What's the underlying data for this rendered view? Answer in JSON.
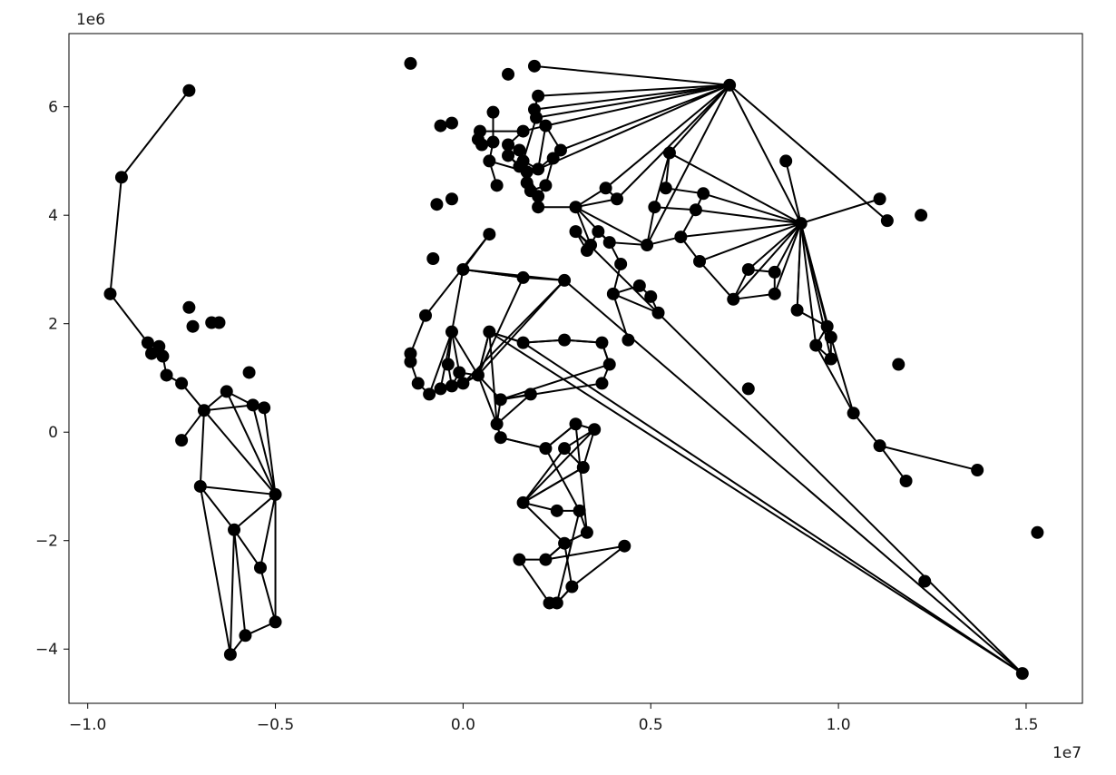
{
  "chart_data": {
    "type": "scatter",
    "title": "",
    "xlabel": "",
    "ylabel": "",
    "xlim": [
      -10500000,
      16500000
    ],
    "ylim": [
      -5000000,
      7350000
    ],
    "x_ticks": [
      {
        "value": -10000000,
        "label": "−1.0"
      },
      {
        "value": -5000000,
        "label": "−0.5"
      },
      {
        "value": 0,
        "label": "0.0"
      },
      {
        "value": 5000000,
        "label": "0.5"
      },
      {
        "value": 10000000,
        "label": "1.0"
      },
      {
        "value": 15000000,
        "label": "1.5"
      }
    ],
    "y_ticks": [
      {
        "value": -4000000,
        "label": "−4"
      },
      {
        "value": -2000000,
        "label": "−2"
      },
      {
        "value": 0,
        "label": "0"
      },
      {
        "value": 2000000,
        "label": "2"
      },
      {
        "value": 4000000,
        "label": "4"
      },
      {
        "value": 6000000,
        "label": "6"
      }
    ],
    "x_offset_label": "1e7",
    "y_offset_label": "1e6",
    "grid": false,
    "colors": {
      "points": "#000000",
      "edges": "#000000",
      "axes": "#000000"
    },
    "points": [
      [
        -7300000,
        6300000
      ],
      [
        -9100000,
        4700000
      ],
      [
        -9400000,
        2550000
      ],
      [
        -8400000,
        1650000
      ],
      [
        -8300000,
        1450000
      ],
      [
        -8100000,
        1580000
      ],
      [
        -8000000,
        1400000
      ],
      [
        -7900000,
        1050000
      ],
      [
        -7500000,
        900000
      ],
      [
        -6900000,
        400000
      ],
      [
        -7500000,
        -150000
      ],
      [
        -7000000,
        -1000000
      ],
      [
        -6300000,
        750000
      ],
      [
        -5600000,
        500000
      ],
      [
        -5300000,
        450000
      ],
      [
        -5700000,
        1100000
      ],
      [
        -5000000,
        -1150000
      ],
      [
        -6100000,
        -1800000
      ],
      [
        -5400000,
        -2500000
      ],
      [
        -5000000,
        -3500000
      ],
      [
        -5800000,
        -3750000
      ],
      [
        -6200000,
        -4100000
      ],
      [
        -7300000,
        2300000
      ],
      [
        -7200000,
        1950000
      ],
      [
        -6700000,
        2020000
      ],
      [
        -6500000,
        2020000
      ],
      [
        -1400000,
        6800000
      ],
      [
        -600000,
        5650000
      ],
      [
        -300000,
        5700000
      ],
      [
        -700000,
        4200000
      ],
      [
        -300000,
        4300000
      ],
      [
        -800000,
        3200000
      ],
      [
        1200000,
        6600000
      ],
      [
        1900000,
        6750000
      ],
      [
        7100000,
        6400000
      ],
      [
        2000000,
        6200000
      ],
      [
        1900000,
        5950000
      ],
      [
        1950000,
        5800000
      ],
      [
        2200000,
        5650000
      ],
      [
        2600000,
        5200000
      ],
      [
        2400000,
        5050000
      ],
      [
        2200000,
        4550000
      ],
      [
        2000000,
        4350000
      ],
      [
        2000000,
        4150000
      ],
      [
        1700000,
        4600000
      ],
      [
        1500000,
        4900000
      ],
      [
        1200000,
        5100000
      ],
      [
        1200000,
        5300000
      ],
      [
        1500000,
        5200000
      ],
      [
        1700000,
        4800000
      ],
      [
        1800000,
        4450000
      ],
      [
        900000,
        4550000
      ],
      [
        700000,
        5000000
      ],
      [
        800000,
        5350000
      ],
      [
        800000,
        5900000
      ],
      [
        500000,
        5300000
      ],
      [
        400000,
        5400000
      ],
      [
        450000,
        5550000
      ],
      [
        1600000,
        5550000
      ],
      [
        1600000,
        5000000
      ],
      [
        2000000,
        4850000
      ],
      [
        3000000,
        4150000
      ],
      [
        3800000,
        4500000
      ],
      [
        4100000,
        4300000
      ],
      [
        3900000,
        3500000
      ],
      [
        3600000,
        3700000
      ],
      [
        3300000,
        3350000
      ],
      [
        3000000,
        3700000
      ],
      [
        3400000,
        3450000
      ],
      [
        4200000,
        3100000
      ],
      [
        4000000,
        2550000
      ],
      [
        4700000,
        2700000
      ],
      [
        5000000,
        2500000
      ],
      [
        5200000,
        2200000
      ],
      [
        4400000,
        1700000
      ],
      [
        4900000,
        3450000
      ],
      [
        5100000,
        4150000
      ],
      [
        5500000,
        5150000
      ],
      [
        5400000,
        4500000
      ],
      [
        6400000,
        4400000
      ],
      [
        6200000,
        4100000
      ],
      [
        5800000,
        3600000
      ],
      [
        6300000,
        3150000
      ],
      [
        7200000,
        2450000
      ],
      [
        7600000,
        3000000
      ],
      [
        8300000,
        2950000
      ],
      [
        8300000,
        2550000
      ],
      [
        8600000,
        5000000
      ],
      [
        9000000,
        3850000
      ],
      [
        8900000,
        2250000
      ],
      [
        9700000,
        1950000
      ],
      [
        9800000,
        1750000
      ],
      [
        9800000,
        1350000
      ],
      [
        9400000,
        1600000
      ],
      [
        11100000,
        4300000
      ],
      [
        11300000,
        3900000
      ],
      [
        12200000,
        4000000
      ],
      [
        11600000,
        1250000
      ],
      [
        10400000,
        350000
      ],
      [
        11100000,
        -250000
      ],
      [
        11800000,
        -900000
      ],
      [
        13700000,
        -700000
      ],
      [
        7600000,
        800000
      ],
      [
        15300000,
        -1850000
      ],
      [
        12300000,
        -2750000
      ],
      [
        14900000,
        -4450000
      ],
      [
        2700000,
        2800000
      ],
      [
        1600000,
        2850000
      ],
      [
        0,
        3000000
      ],
      [
        700000,
        3650000
      ],
      [
        -1000000,
        2150000
      ],
      [
        -1400000,
        1450000
      ],
      [
        -1400000,
        1300000
      ],
      [
        -1200000,
        900000
      ],
      [
        -900000,
        700000
      ],
      [
        -600000,
        800000
      ],
      [
        -300000,
        850000
      ],
      [
        -400000,
        1250000
      ],
      [
        -300000,
        1850000
      ],
      [
        -100000,
        1100000
      ],
      [
        0,
        900000
      ],
      [
        400000,
        1050000
      ],
      [
        700000,
        1850000
      ],
      [
        1600000,
        1650000
      ],
      [
        2700000,
        1700000
      ],
      [
        3700000,
        1650000
      ],
      [
        3900000,
        1250000
      ],
      [
        3700000,
        900000
      ],
      [
        1000000,
        600000
      ],
      [
        1800000,
        700000
      ],
      [
        900000,
        150000
      ],
      [
        1000000,
        -100000
      ],
      [
        2200000,
        -300000
      ],
      [
        3000000,
        150000
      ],
      [
        3500000,
        50000
      ],
      [
        2700000,
        -300000
      ],
      [
        3200000,
        -650000
      ],
      [
        1600000,
        -1300000
      ],
      [
        2500000,
        -1450000
      ],
      [
        3100000,
        -1450000
      ],
      [
        3300000,
        -1850000
      ],
      [
        2700000,
        -2050000
      ],
      [
        2200000,
        -2350000
      ],
      [
        1500000,
        -2350000
      ],
      [
        2300000,
        -3150000
      ],
      [
        2500000,
        -3150000
      ],
      [
        2900000,
        -2850000
      ],
      [
        4300000,
        -2100000
      ]
    ],
    "edges": [
      [
        0,
        1
      ],
      [
        1,
        2
      ],
      [
        2,
        3
      ],
      [
        3,
        4
      ],
      [
        4,
        5
      ],
      [
        5,
        6
      ],
      [
        6,
        7
      ],
      [
        7,
        8
      ],
      [
        8,
        9
      ],
      [
        9,
        10
      ],
      [
        9,
        11
      ],
      [
        9,
        12
      ],
      [
        9,
        13
      ],
      [
        12,
        13
      ],
      [
        13,
        14
      ],
      [
        12,
        16
      ],
      [
        14,
        16
      ],
      [
        13,
        16
      ],
      [
        11,
        16
      ],
      [
        11,
        17
      ],
      [
        17,
        16
      ],
      [
        17,
        18
      ],
      [
        16,
        18
      ],
      [
        18,
        19
      ],
      [
        16,
        19
      ],
      [
        17,
        20
      ],
      [
        19,
        20
      ],
      [
        17,
        21
      ],
      [
        20,
        21
      ],
      [
        11,
        21
      ],
      [
        9,
        16
      ],
      [
        33,
        34
      ],
      [
        35,
        34
      ],
      [
        36,
        34
      ],
      [
        37,
        34
      ],
      [
        38,
        34
      ],
      [
        39,
        34
      ],
      [
        60,
        34
      ],
      [
        62,
        34
      ],
      [
        63,
        34
      ],
      [
        75,
        34
      ],
      [
        77,
        34
      ],
      [
        88,
        34
      ],
      [
        95,
        34
      ],
      [
        35,
        36
      ],
      [
        36,
        37
      ],
      [
        37,
        38
      ],
      [
        38,
        39
      ],
      [
        39,
        40
      ],
      [
        40,
        41
      ],
      [
        41,
        42
      ],
      [
        42,
        43
      ],
      [
        43,
        44
      ],
      [
        44,
        45
      ],
      [
        45,
        46
      ],
      [
        46,
        47
      ],
      [
        47,
        48
      ],
      [
        48,
        49
      ],
      [
        49,
        50
      ],
      [
        50,
        41
      ],
      [
        51,
        52
      ],
      [
        52,
        53
      ],
      [
        53,
        54
      ],
      [
        53,
        55
      ],
      [
        55,
        56
      ],
      [
        56,
        57
      ],
      [
        57,
        58
      ],
      [
        58,
        38
      ],
      [
        58,
        47
      ],
      [
        59,
        60
      ],
      [
        60,
        39
      ],
      [
        48,
        59
      ],
      [
        49,
        60
      ],
      [
        37,
        59
      ],
      [
        38,
        60
      ],
      [
        49,
        42
      ],
      [
        46,
        49
      ],
      [
        52,
        49
      ],
      [
        43,
        61
      ],
      [
        61,
        62
      ],
      [
        62,
        63
      ],
      [
        61,
        63
      ],
      [
        61,
        64
      ],
      [
        64,
        65
      ],
      [
        65,
        66
      ],
      [
        66,
        67
      ],
      [
        67,
        68
      ],
      [
        68,
        61
      ],
      [
        64,
        69
      ],
      [
        69,
        70
      ],
      [
        70,
        71
      ],
      [
        71,
        72
      ],
      [
        72,
        73
      ],
      [
        73,
        70
      ],
      [
        70,
        74
      ],
      [
        64,
        75
      ],
      [
        75,
        76
      ],
      [
        76,
        77
      ],
      [
        77,
        78
      ],
      [
        78,
        79
      ],
      [
        79,
        80
      ],
      [
        80,
        81
      ],
      [
        81,
        82
      ],
      [
        82,
        83
      ],
      [
        83,
        88
      ],
      [
        84,
        88
      ],
      [
        85,
        88
      ],
      [
        86,
        88
      ],
      [
        87,
        88
      ],
      [
        77,
        88
      ],
      [
        79,
        88
      ],
      [
        80,
        88
      ],
      [
        81,
        88
      ],
      [
        82,
        88
      ],
      [
        83,
        84
      ],
      [
        84,
        85
      ],
      [
        85,
        86
      ],
      [
        86,
        83
      ],
      [
        88,
        89
      ],
      [
        89,
        90
      ],
      [
        90,
        91
      ],
      [
        91,
        92
      ],
      [
        92,
        93
      ],
      [
        93,
        90
      ],
      [
        88,
        90
      ],
      [
        88,
        91
      ],
      [
        88,
        92
      ],
      [
        88,
        93
      ],
      [
        88,
        94
      ],
      [
        75,
        81
      ],
      [
        76,
        80
      ],
      [
        61,
        75
      ],
      [
        93,
        98
      ],
      [
        98,
        99
      ],
      [
        99,
        100
      ],
      [
        99,
        101
      ],
      [
        91,
        98
      ],
      [
        88,
        89
      ],
      [
        67,
        105
      ],
      [
        105,
        106
      ],
      [
        106,
        107
      ],
      [
        107,
        108
      ],
      [
        108,
        109
      ],
      [
        109,
        110
      ],
      [
        110,
        111
      ],
      [
        111,
        112
      ],
      [
        112,
        113
      ],
      [
        113,
        114
      ],
      [
        114,
        115
      ],
      [
        115,
        116
      ],
      [
        116,
        117
      ],
      [
        117,
        118
      ],
      [
        118,
        119
      ],
      [
        119,
        120
      ],
      [
        120,
        121
      ],
      [
        121,
        122
      ],
      [
        122,
        123
      ],
      [
        123,
        124
      ],
      [
        124,
        125
      ],
      [
        125,
        126
      ],
      [
        126,
        127
      ],
      [
        127,
        128
      ],
      [
        128,
        129
      ],
      [
        129,
        130
      ],
      [
        130,
        131
      ],
      [
        131,
        132
      ],
      [
        132,
        133
      ],
      [
        133,
        134
      ],
      [
        134,
        135
      ],
      [
        135,
        136
      ],
      [
        136,
        137
      ],
      [
        137,
        138
      ],
      [
        138,
        139
      ],
      [
        139,
        140
      ],
      [
        140,
        141
      ],
      [
        141,
        142
      ],
      [
        142,
        143
      ],
      [
        143,
        144
      ],
      [
        144,
        145
      ],
      [
        145,
        146
      ],
      [
        146,
        147
      ],
      [
        147,
        148
      ],
      [
        148,
        142
      ],
      [
        107,
        108
      ],
      [
        106,
        108
      ],
      [
        108,
        118
      ],
      [
        106,
        121
      ],
      [
        121,
        122
      ],
      [
        122,
        105
      ],
      [
        105,
        123
      ],
      [
        123,
        124
      ],
      [
        124,
        125
      ],
      [
        122,
        130
      ],
      [
        121,
        130
      ],
      [
        118,
        121
      ],
      [
        116,
        121
      ],
      [
        114,
        118
      ],
      [
        119,
        121
      ],
      [
        115,
        118
      ],
      [
        116,
        119
      ],
      [
        121,
        128
      ],
      [
        128,
        130
      ],
      [
        130,
        131
      ],
      [
        131,
        132
      ],
      [
        132,
        133
      ],
      [
        133,
        134
      ],
      [
        134,
        136
      ],
      [
        136,
        137
      ],
      [
        137,
        134
      ],
      [
        135,
        137
      ],
      [
        132,
        139
      ],
      [
        133,
        140
      ],
      [
        140,
        141
      ],
      [
        141,
        146
      ],
      [
        139,
        145
      ],
      [
        137,
        141
      ],
      [
        141,
        142
      ],
      [
        142,
        147
      ],
      [
        144,
        145
      ],
      [
        145,
        146
      ],
      [
        125,
        126
      ],
      [
        126,
        128
      ],
      [
        122,
        123
      ],
      [
        106,
        120
      ],
      [
        107,
        121
      ]
    ]
  }
}
